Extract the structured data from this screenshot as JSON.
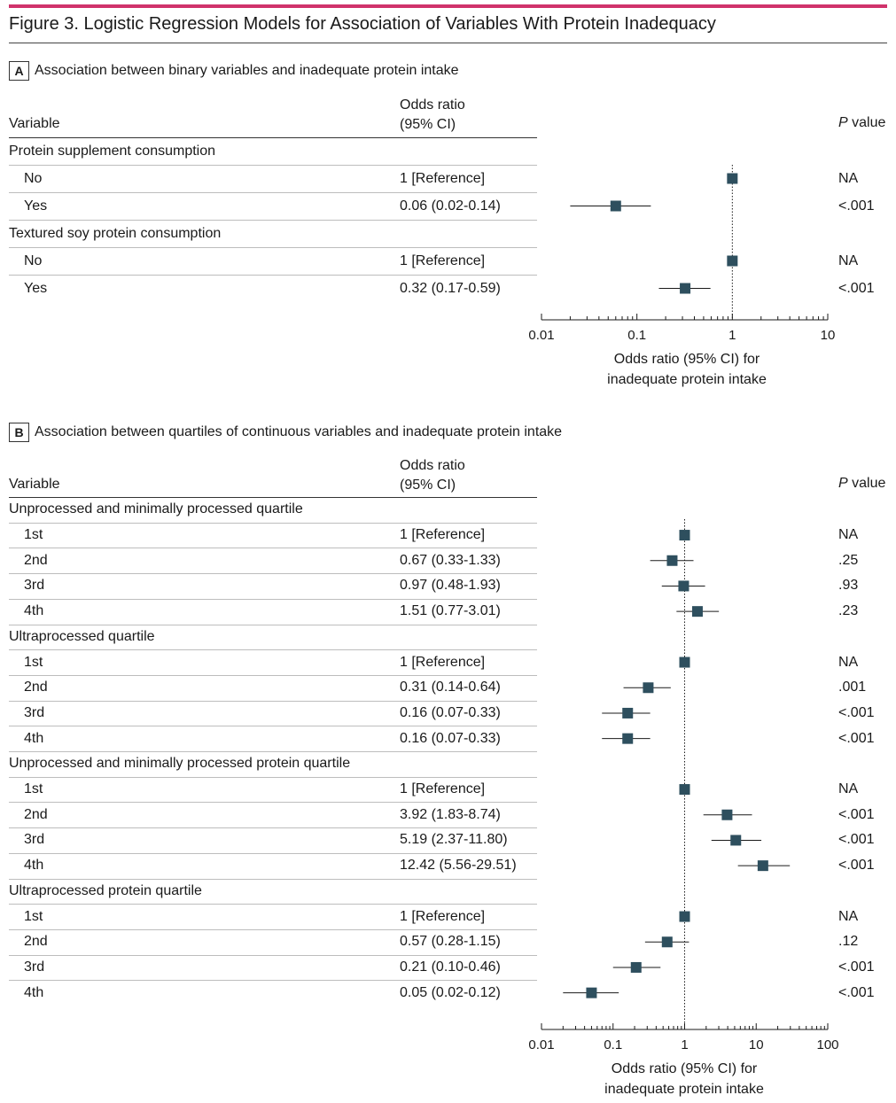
{
  "figure_title": "Figure 3. Logistic Regression Models for Association of Variables With Protein Inadequacy",
  "headers": {
    "variable": "Variable",
    "or_line1": "Odds ratio",
    "or_line2": "(95% CI)",
    "p_italic": "P",
    "p_rest": " value"
  },
  "marker_color": "#2e4f5e",
  "accent_color": "#d0336b",
  "panel_a": {
    "label": "A",
    "title": "Association between binary variables and inadequate protein intake",
    "axis_title_line1": "Odds ratio (95% CI) for",
    "axis_title_line2": "inadequate protein intake",
    "rows": [
      {
        "kind": "group",
        "label": "Protein supplement consumption"
      },
      {
        "kind": "item",
        "label": "No",
        "or_text": "1 [Reference]",
        "p": "NA"
      },
      {
        "kind": "item",
        "label": "Yes",
        "or_text": "0.06 (0.02-0.14)",
        "p": "<.001"
      },
      {
        "kind": "group",
        "label": "Textured soy protein consumption"
      },
      {
        "kind": "item",
        "label": "No",
        "or_text": "1 [Reference]",
        "p": "NA"
      },
      {
        "kind": "item",
        "label": "Yes",
        "or_text": "0.32 (0.17-0.59)",
        "p": "<.001"
      }
    ]
  },
  "panel_b": {
    "label": "B",
    "title": "Association between quartiles of continuous variables and inadequate protein intake",
    "axis_title_line1": "Odds ratio (95% CI) for",
    "axis_title_line2": "inadequate protein intake",
    "rows": [
      {
        "kind": "group",
        "label": "Unprocessed and minimally processed quartile"
      },
      {
        "kind": "item",
        "label": "1st",
        "or_text": "1 [Reference]",
        "p": "NA"
      },
      {
        "kind": "item",
        "label": "2nd",
        "or_text": "0.67 (0.33-1.33)",
        "p": ".25"
      },
      {
        "kind": "item",
        "label": "3rd",
        "or_text": "0.97 (0.48-1.93)",
        "p": ".93"
      },
      {
        "kind": "item",
        "label": "4th",
        "or_text": "1.51 (0.77-3.01)",
        "p": ".23"
      },
      {
        "kind": "group",
        "label": "Ultraprocessed quartile"
      },
      {
        "kind": "item",
        "label": "1st",
        "or_text": "1 [Reference]",
        "p": "NA"
      },
      {
        "kind": "item",
        "label": "2nd",
        "or_text": "0.31 (0.14-0.64)",
        "p": ".001"
      },
      {
        "kind": "item",
        "label": "3rd",
        "or_text": "0.16 (0.07-0.33)",
        "p": "<.001"
      },
      {
        "kind": "item",
        "label": "4th",
        "or_text": "0.16 (0.07-0.33)",
        "p": "<.001"
      },
      {
        "kind": "group",
        "label": "Unprocessed and minimally processed protein quartile"
      },
      {
        "kind": "item",
        "label": "1st",
        "or_text": "1 [Reference]",
        "p": "NA"
      },
      {
        "kind": "item",
        "label": "2nd",
        "or_text": "3.92 (1.83-8.74)",
        "p": "<.001"
      },
      {
        "kind": "item",
        "label": "3rd",
        "or_text": "5.19 (2.37-11.80)",
        "p": "<.001"
      },
      {
        "kind": "item",
        "label": "4th",
        "or_text": "12.42 (5.56-29.51)",
        "p": "<.001"
      },
      {
        "kind": "group",
        "label": "Ultraprocessed protein quartile"
      },
      {
        "kind": "item",
        "label": "1st",
        "or_text": "1 [Reference]",
        "p": "NA"
      },
      {
        "kind": "item",
        "label": "2nd",
        "or_text": "0.57 (0.28-1.15)",
        "p": ".12"
      },
      {
        "kind": "item",
        "label": "3rd",
        "or_text": "0.21 (0.10-0.46)",
        "p": "<.001"
      },
      {
        "kind": "item",
        "label": "4th",
        "or_text": "0.05 (0.02-0.12)",
        "p": "<.001"
      }
    ]
  },
  "chart_data": [
    {
      "type": "forest",
      "scale": "log",
      "xlim": [
        0.01,
        10
      ],
      "ticks": [
        0.01,
        0.1,
        1,
        10
      ],
      "tick_labels": [
        "0.01",
        "0.1",
        "1",
        "10"
      ],
      "reference_line": 1,
      "xlabel": "Odds ratio (95% CI) for inadequate protein intake",
      "points": [
        {
          "group": "Protein supplement consumption",
          "label": "No",
          "or": 1,
          "lo": null,
          "hi": null
        },
        {
          "group": "Protein supplement consumption",
          "label": "Yes",
          "or": 0.06,
          "lo": 0.02,
          "hi": 0.14
        },
        {
          "group": "Textured soy protein consumption",
          "label": "No",
          "or": 1,
          "lo": null,
          "hi": null
        },
        {
          "group": "Textured soy protein consumption",
          "label": "Yes",
          "or": 0.32,
          "lo": 0.17,
          "hi": 0.59
        }
      ]
    },
    {
      "type": "forest",
      "scale": "log",
      "xlim": [
        0.01,
        100
      ],
      "ticks": [
        0.01,
        0.1,
        1,
        10,
        100
      ],
      "tick_labels": [
        "0.01",
        "0.1",
        "1",
        "10",
        "100"
      ],
      "reference_line": 1,
      "xlabel": "Odds ratio (95% CI) for inadequate protein intake",
      "points": [
        {
          "group": "Unprocessed and minimally processed quartile",
          "label": "1st",
          "or": 1,
          "lo": null,
          "hi": null
        },
        {
          "group": "Unprocessed and minimally processed quartile",
          "label": "2nd",
          "or": 0.67,
          "lo": 0.33,
          "hi": 1.33
        },
        {
          "group": "Unprocessed and minimally processed quartile",
          "label": "3rd",
          "or": 0.97,
          "lo": 0.48,
          "hi": 1.93
        },
        {
          "group": "Unprocessed and minimally processed quartile",
          "label": "4th",
          "or": 1.51,
          "lo": 0.77,
          "hi": 3.01
        },
        {
          "group": "Ultraprocessed quartile",
          "label": "1st",
          "or": 1,
          "lo": null,
          "hi": null
        },
        {
          "group": "Ultraprocessed quartile",
          "label": "2nd",
          "or": 0.31,
          "lo": 0.14,
          "hi": 0.64
        },
        {
          "group": "Ultraprocessed quartile",
          "label": "3rd",
          "or": 0.16,
          "lo": 0.07,
          "hi": 0.33
        },
        {
          "group": "Ultraprocessed quartile",
          "label": "4th",
          "or": 0.16,
          "lo": 0.07,
          "hi": 0.33
        },
        {
          "group": "Unprocessed and minimally processed protein quartile",
          "label": "1st",
          "or": 1,
          "lo": null,
          "hi": null
        },
        {
          "group": "Unprocessed and minimally processed protein quartile",
          "label": "2nd",
          "or": 3.92,
          "lo": 1.83,
          "hi": 8.74
        },
        {
          "group": "Unprocessed and minimally processed protein quartile",
          "label": "3rd",
          "or": 5.19,
          "lo": 2.37,
          "hi": 11.8
        },
        {
          "group": "Unprocessed and minimally processed protein quartile",
          "label": "4th",
          "or": 12.42,
          "lo": 5.56,
          "hi": 29.51
        },
        {
          "group": "Ultraprocessed protein quartile",
          "label": "1st",
          "or": 1,
          "lo": null,
          "hi": null
        },
        {
          "group": "Ultraprocessed protein quartile",
          "label": "2nd",
          "or": 0.57,
          "lo": 0.28,
          "hi": 1.15
        },
        {
          "group": "Ultraprocessed protein quartile",
          "label": "3rd",
          "or": 0.21,
          "lo": 0.1,
          "hi": 0.46
        },
        {
          "group": "Ultraprocessed protein quartile",
          "label": "4th",
          "or": 0.05,
          "lo": 0.02,
          "hi": 0.12
        }
      ]
    }
  ]
}
